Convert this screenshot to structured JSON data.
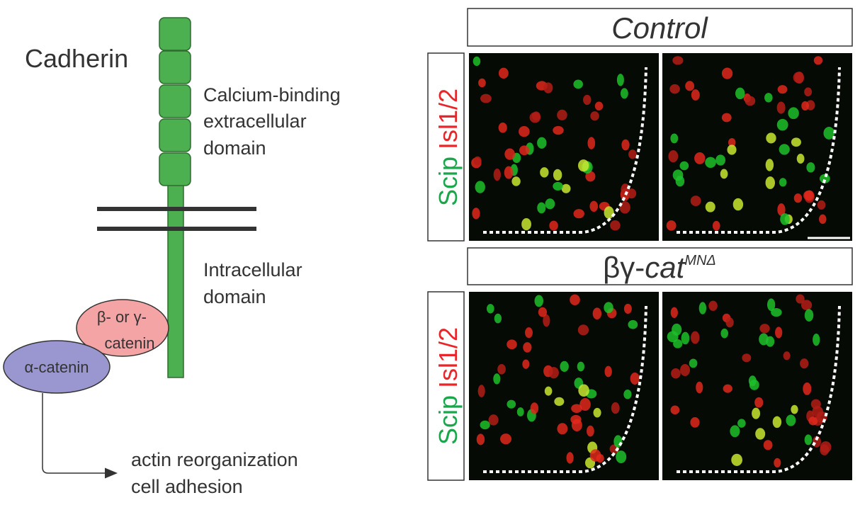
{
  "cadherin": {
    "title": "Cadherin",
    "extracellular_label": [
      "Calcium-binding",
      "extracellular",
      "domain"
    ],
    "intracellular_label": [
      "Intracellular",
      "domain"
    ],
    "beta_catenin": [
      "β- or γ-",
      "catenin"
    ],
    "alpha_catenin": "α-catenin",
    "output": [
      "actin reorganization",
      "cell adhesion"
    ]
  },
  "panels": {
    "rows": [
      {
        "title": "Control",
        "stain": [
          "Scip",
          "Isl1/2"
        ]
      },
      {
        "title_prefix": "βγ-",
        "title_italic": "cat",
        "superscript": "MNΔ",
        "stain": [
          "Scip",
          "Isl1/2"
        ]
      }
    ]
  }
}
